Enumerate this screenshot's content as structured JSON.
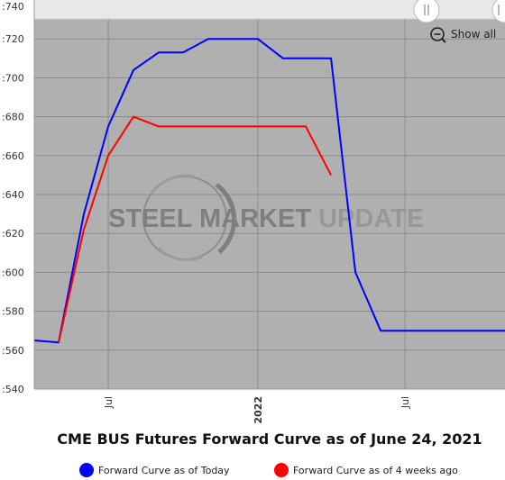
{
  "chart_data": {
    "type": "line",
    "title": "CME BUS Futures Forward Curve as of June 24, 2021",
    "xlabel": "",
    "ylabel": "",
    "ylim": [
      540,
      740
    ],
    "y_ticks": [
      ":540",
      ":560",
      ":580",
      ":600",
      ":620",
      ":640",
      ":660",
      ":680",
      ":700",
      ":720",
      ":740"
    ],
    "y_tick_values": [
      540,
      560,
      580,
      600,
      620,
      640,
      660,
      680,
      700,
      720,
      740
    ],
    "x_ticks": [
      {
        "label": "Jul",
        "date": "2021-07-01",
        "bold": false
      },
      {
        "label": "2022",
        "date": "2022-01-01",
        "bold": true
      },
      {
        "label": "Jul",
        "date": "2022-07-01",
        "bold": false
      }
    ],
    "xlim": [
      "2021-04-01",
      "2022-11-01"
    ],
    "grid": true,
    "legend_position": "bottom",
    "series": [
      {
        "name": "Forward Curve as of Today",
        "color": "#0000ff",
        "points": [
          {
            "x": "2021-04-01",
            "y": 565
          },
          {
            "x": "2021-05-01",
            "y": 564
          },
          {
            "x": "2021-06-01",
            "y": 630
          },
          {
            "x": "2021-07-01",
            "y": 675
          },
          {
            "x": "2021-08-01",
            "y": 704
          },
          {
            "x": "2021-09-01",
            "y": 713
          },
          {
            "x": "2021-10-01",
            "y": 713
          },
          {
            "x": "2021-11-01",
            "y": 720
          },
          {
            "x": "2021-12-01",
            "y": 720
          },
          {
            "x": "2022-01-01",
            "y": 720
          },
          {
            "x": "2022-02-01",
            "y": 710
          },
          {
            "x": "2022-03-01",
            "y": 710
          },
          {
            "x": "2022-04-01",
            "y": 710
          },
          {
            "x": "2022-05-01",
            "y": 600
          },
          {
            "x": "2022-06-01",
            "y": 570
          },
          {
            "x": "2022-07-01",
            "y": 570
          },
          {
            "x": "2022-08-01",
            "y": 570
          },
          {
            "x": "2022-09-01",
            "y": 570
          },
          {
            "x": "2022-10-01",
            "y": 570
          },
          {
            "x": "2022-11-01",
            "y": 570
          }
        ]
      },
      {
        "name": "Forward Curve as of 4 weeks ago",
        "color": "#ff0000",
        "points": [
          {
            "x": "2021-05-01",
            "y": 564
          },
          {
            "x": "2021-06-01",
            "y": 622
          },
          {
            "x": "2021-07-01",
            "y": 660
          },
          {
            "x": "2021-08-01",
            "y": 680
          },
          {
            "x": "2021-09-01",
            "y": 675
          },
          {
            "x": "2021-10-01",
            "y": 675
          },
          {
            "x": "2021-11-01",
            "y": 675
          },
          {
            "x": "2021-12-01",
            "y": 675
          },
          {
            "x": "2022-01-01",
            "y": 675
          },
          {
            "x": "2022-02-01",
            "y": 675
          },
          {
            "x": "2022-03-01",
            "y": 675
          },
          {
            "x": "2022-04-01",
            "y": 650
          }
        ]
      }
    ]
  },
  "controls": {
    "show_all_label": "Show all",
    "zoom_icon": "zoom-out-icon",
    "navigator_handle_icon": "drag-handle-icon"
  },
  "watermark": {
    "text_dark": "STEEL MARKET ",
    "text_light": "UPDATE"
  },
  "colors": {
    "plot_background": "#b0b0b0",
    "grid": "#8c8c8c",
    "navigator_background": "#e8e8e8"
  }
}
